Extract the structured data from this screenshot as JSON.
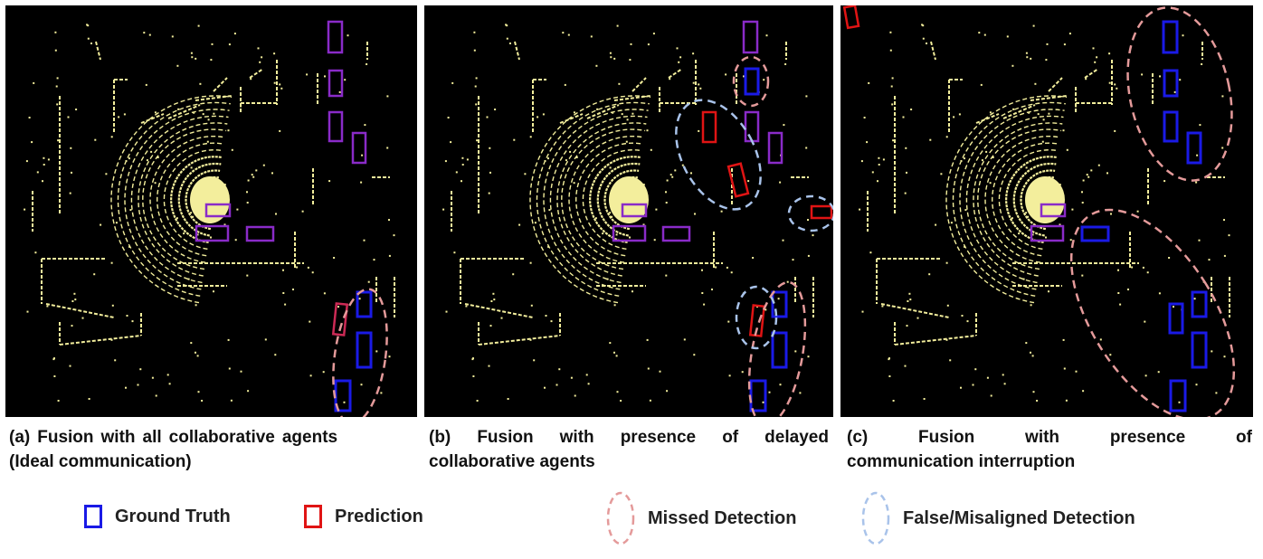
{
  "panels": [
    {
      "id": "a",
      "caption_prefix": "(a)",
      "caption_words": [
        "Fusion",
        "with",
        "all",
        "collaborative",
        "agents"
      ],
      "caption_line2": "(Ideal communication)"
    },
    {
      "id": "b",
      "caption_prefix": "(b)",
      "caption_words": [
        "Fusion",
        "with",
        "presence",
        "of",
        "delayed"
      ],
      "caption_line2": "collaborative agents"
    },
    {
      "id": "c",
      "caption_prefix": "(c)",
      "caption_words": [
        "Fusion",
        "with",
        "presence",
        "of"
      ],
      "caption_line2": "communication interruption"
    }
  ],
  "legend": {
    "ground_truth": "Ground Truth",
    "prediction": "Prediction",
    "missed": "Missed Detection",
    "false": "False/Misaligned Detection"
  },
  "colors": {
    "background": "#000000",
    "lidar_points": "#f3ee9c",
    "ground_truth": "#1a1ae6",
    "prediction": "#e01414",
    "overlap": "#8a2bc8",
    "missed_ellipse": "#e49a9a",
    "false_ellipse": "#a9c3ea"
  }
}
